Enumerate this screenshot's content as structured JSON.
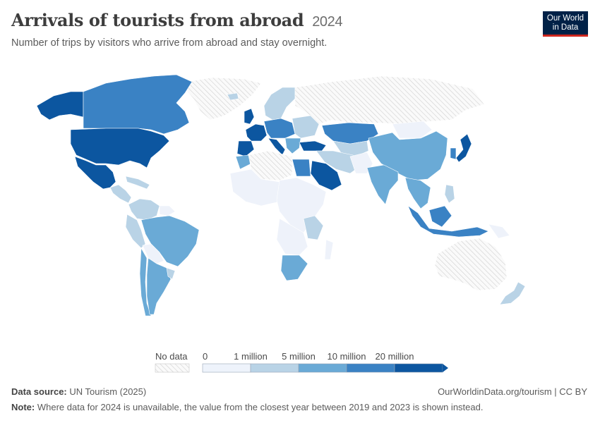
{
  "header": {
    "title": "Arrivals of tourists from abroad",
    "year": "2024",
    "subtitle": "Number of trips by visitors who arrive from abroad and stay overnight."
  },
  "logo": {
    "line1": "Our World",
    "line2": "in Data"
  },
  "legend": {
    "no_data": "No data",
    "ticks": [
      "0",
      "1 million",
      "5 million",
      "10 million",
      "20 million"
    ],
    "colors": [
      "#eef3fb",
      "#b9d3e6",
      "#6aaad6",
      "#3a82c4",
      "#0c56a0"
    ],
    "no_data_pattern": "hatched-grey"
  },
  "colors": {
    "none": "#eef2fa",
    "low": "#b9d3e6",
    "mid": "#6aaad6",
    "high": "#3a82c4",
    "top": "#0c56a0",
    "no_data": "#f2f2f2"
  },
  "footer": {
    "source_label": "Data source:",
    "source": "UN Tourism (2025)",
    "credit": "OurWorldinData.org/tourism | CC BY",
    "note_label": "Note:",
    "note": "Where data for 2024 is unavailable, the value from the closest year between 2019 and 2023 is shown instead."
  }
}
